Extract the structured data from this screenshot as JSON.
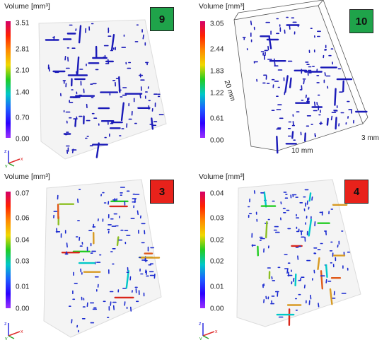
{
  "panels": [
    {
      "id": "9",
      "title": "Volume [mm³]",
      "badge": "9",
      "badge_color": "#1fa34a",
      "ticks": [
        "3.51",
        "2.81",
        "2.10",
        "1.40",
        "0.70",
        "0.00"
      ],
      "pore_color_mode": "uniform"
    },
    {
      "id": "10",
      "title": "Volume [mm³]",
      "badge": "10",
      "badge_color": "#1fa34a",
      "ticks": [
        "3.05",
        "2.44",
        "1.83",
        "1.22",
        "0.61",
        "0.00"
      ],
      "pore_color_mode": "uniform",
      "dimensions": {
        "height": "20 mm",
        "width": "10 mm",
        "depth": "3 mm"
      }
    },
    {
      "id": "3",
      "title": "Volume [mm³]",
      "badge": "3",
      "badge_color": "#e8221b",
      "ticks": [
        "0.07",
        "0.06",
        "0.04",
        "0.03",
        "0.01",
        "0.00"
      ],
      "pore_color_mode": "graded"
    },
    {
      "id": "4",
      "title": "Volume [mm³]",
      "badge": "4",
      "badge_color": "#e8221b",
      "ticks": [
        "0.04",
        "0.03",
        "0.02",
        "0.02",
        "0.01",
        "0.00"
      ],
      "pore_color_mode": "graded"
    }
  ],
  "colorbar": {
    "colors": [
      "#d4006a",
      "#ff2200",
      "#ff8a00",
      "#f0d800",
      "#22cc22",
      "#00c8c8",
      "#1c60ff",
      "#2a00ff",
      "#9b30ff"
    ]
  },
  "axes_labels": {
    "z": "z",
    "x": "x",
    "y": "y"
  }
}
